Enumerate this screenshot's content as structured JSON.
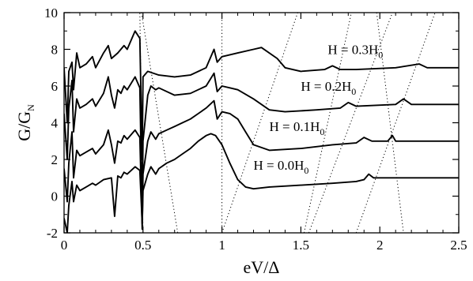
{
  "chart_data": {
    "type": "line",
    "xlabel": "eV/Δ",
    "ylabel": "G/G",
    "ylabel_sub": "N",
    "xlim": [
      0,
      2.5
    ],
    "ylim": [
      -2,
      10
    ],
    "xticks": [
      "0",
      "0.5",
      "1",
      "1.5",
      "2",
      "2.5"
    ],
    "xtick_values": [
      0,
      0.5,
      1,
      1.5,
      2,
      2.5
    ],
    "yticks": [
      "-2",
      "0",
      "2",
      "4",
      "6",
      "8",
      "10"
    ],
    "ytick_values": [
      -2,
      0,
      2,
      4,
      6,
      8,
      10
    ],
    "grid": false,
    "legend": "none",
    "line_color": "#000000",
    "series": [
      {
        "label_main": "H = 0.0H",
        "label_sub": "0",
        "label_at": [
          1.2,
          1.45
        ],
        "points": [
          [
            0.0,
            -1.2
          ],
          [
            0.02,
            -2.0
          ],
          [
            0.03,
            -0.5
          ],
          [
            0.05,
            0.8
          ],
          [
            0.06,
            -0.3
          ],
          [
            0.08,
            0.6
          ],
          [
            0.1,
            0.3
          ],
          [
            0.14,
            0.5
          ],
          [
            0.18,
            0.7
          ],
          [
            0.2,
            0.6
          ],
          [
            0.25,
            0.9
          ],
          [
            0.3,
            1.0
          ],
          [
            0.32,
            -1.1
          ],
          [
            0.34,
            1.1
          ],
          [
            0.36,
            1.0
          ],
          [
            0.38,
            1.3
          ],
          [
            0.4,
            1.2
          ],
          [
            0.45,
            1.6
          ],
          [
            0.48,
            1.4
          ],
          [
            0.495,
            -1.5
          ],
          [
            0.5,
            0.3
          ],
          [
            0.53,
            1.2
          ],
          [
            0.55,
            1.6
          ],
          [
            0.58,
            1.2
          ],
          [
            0.6,
            1.5
          ],
          [
            0.65,
            1.8
          ],
          [
            0.7,
            2.0
          ],
          [
            0.75,
            2.3
          ],
          [
            0.8,
            2.6
          ],
          [
            0.85,
            3.0
          ],
          [
            0.9,
            3.3
          ],
          [
            0.93,
            3.4
          ],
          [
            0.96,
            3.3
          ],
          [
            1.0,
            2.8
          ],
          [
            1.05,
            1.8
          ],
          [
            1.1,
            0.9
          ],
          [
            1.15,
            0.5
          ],
          [
            1.2,
            0.4
          ],
          [
            1.3,
            0.5
          ],
          [
            1.5,
            0.6
          ],
          [
            1.7,
            0.7
          ],
          [
            1.85,
            0.8
          ],
          [
            1.9,
            0.9
          ],
          [
            1.93,
            1.2
          ],
          [
            1.96,
            1.0
          ],
          [
            2.0,
            1.0
          ],
          [
            2.5,
            1.0
          ]
        ]
      },
      {
        "label_main": "H = 0.1H",
        "label_sub": "0",
        "label_at": [
          1.3,
          3.55
        ],
        "points": [
          [
            0.0,
            1.5
          ],
          [
            0.02,
            -0.3
          ],
          [
            0.03,
            1.8
          ],
          [
            0.05,
            3.5
          ],
          [
            0.06,
            1.0
          ],
          [
            0.08,
            2.5
          ],
          [
            0.1,
            2.2
          ],
          [
            0.14,
            2.4
          ],
          [
            0.18,
            2.6
          ],
          [
            0.2,
            2.3
          ],
          [
            0.25,
            2.8
          ],
          [
            0.28,
            3.6
          ],
          [
            0.3,
            2.8
          ],
          [
            0.32,
            1.8
          ],
          [
            0.34,
            3.0
          ],
          [
            0.36,
            2.9
          ],
          [
            0.38,
            3.3
          ],
          [
            0.4,
            3.1
          ],
          [
            0.45,
            3.6
          ],
          [
            0.48,
            3.2
          ],
          [
            0.495,
            -1.8
          ],
          [
            0.5,
            1.2
          ],
          [
            0.53,
            3.0
          ],
          [
            0.55,
            3.5
          ],
          [
            0.58,
            3.1
          ],
          [
            0.6,
            3.4
          ],
          [
            0.65,
            3.6
          ],
          [
            0.7,
            3.8
          ],
          [
            0.75,
            4.0
          ],
          [
            0.8,
            4.2
          ],
          [
            0.85,
            4.5
          ],
          [
            0.9,
            4.8
          ],
          [
            0.95,
            5.2
          ],
          [
            0.97,
            4.2
          ],
          [
            1.0,
            4.6
          ],
          [
            1.05,
            4.5
          ],
          [
            1.1,
            4.2
          ],
          [
            1.15,
            3.5
          ],
          [
            1.2,
            2.8
          ],
          [
            1.3,
            2.5
          ],
          [
            1.5,
            2.6
          ],
          [
            1.7,
            2.8
          ],
          [
            1.85,
            2.9
          ],
          [
            1.9,
            3.2
          ],
          [
            1.95,
            3.0
          ],
          [
            2.05,
            3.0
          ],
          [
            2.08,
            3.3
          ],
          [
            2.1,
            3.0
          ],
          [
            2.5,
            3.0
          ]
        ]
      },
      {
        "label_main": "H = 0.2H",
        "label_sub": "0",
        "label_at": [
          1.5,
          5.75
        ],
        "points": [
          [
            0.0,
            4.5
          ],
          [
            0.02,
            2.0
          ],
          [
            0.03,
            4.8
          ],
          [
            0.05,
            6.3
          ],
          [
            0.06,
            3.5
          ],
          [
            0.08,
            5.3
          ],
          [
            0.1,
            4.8
          ],
          [
            0.14,
            5.0
          ],
          [
            0.18,
            5.3
          ],
          [
            0.2,
            4.9
          ],
          [
            0.25,
            5.6
          ],
          [
            0.28,
            6.5
          ],
          [
            0.3,
            5.5
          ],
          [
            0.32,
            4.8
          ],
          [
            0.34,
            5.8
          ],
          [
            0.36,
            5.6
          ],
          [
            0.38,
            6.0
          ],
          [
            0.4,
            5.8
          ],
          [
            0.45,
            6.5
          ],
          [
            0.48,
            5.9
          ],
          [
            0.495,
            -1.2
          ],
          [
            0.5,
            3.0
          ],
          [
            0.53,
            5.5
          ],
          [
            0.55,
            6.0
          ],
          [
            0.58,
            5.8
          ],
          [
            0.6,
            5.9
          ],
          [
            0.7,
            5.5
          ],
          [
            0.8,
            5.6
          ],
          [
            0.9,
            6.0
          ],
          [
            0.95,
            6.7
          ],
          [
            0.97,
            5.7
          ],
          [
            1.0,
            6.0
          ],
          [
            1.05,
            5.9
          ],
          [
            1.1,
            5.8
          ],
          [
            1.2,
            5.3
          ],
          [
            1.3,
            4.7
          ],
          [
            1.4,
            4.6
          ],
          [
            1.6,
            4.7
          ],
          [
            1.75,
            4.8
          ],
          [
            1.8,
            5.1
          ],
          [
            1.85,
            4.9
          ],
          [
            2.1,
            5.0
          ],
          [
            2.15,
            5.3
          ],
          [
            2.2,
            5.0
          ],
          [
            2.5,
            5.0
          ]
        ]
      },
      {
        "label_main": "H = 0.3H",
        "label_sub": "0",
        "label_at": [
          1.67,
          7.75
        ],
        "points": [
          [
            0.0,
            7.0
          ],
          [
            0.02,
            4.0
          ],
          [
            0.03,
            6.8
          ],
          [
            0.05,
            7.3
          ],
          [
            0.06,
            5.8
          ],
          [
            0.08,
            7.8
          ],
          [
            0.1,
            7.0
          ],
          [
            0.14,
            7.2
          ],
          [
            0.18,
            7.6
          ],
          [
            0.2,
            7.0
          ],
          [
            0.25,
            7.8
          ],
          [
            0.28,
            8.2
          ],
          [
            0.3,
            7.5
          ],
          [
            0.34,
            7.8
          ],
          [
            0.38,
            8.2
          ],
          [
            0.4,
            8.0
          ],
          [
            0.45,
            9.0
          ],
          [
            0.48,
            8.6
          ],
          [
            0.495,
            2.0
          ],
          [
            0.5,
            6.5
          ],
          [
            0.53,
            6.8
          ],
          [
            0.6,
            6.6
          ],
          [
            0.7,
            6.5
          ],
          [
            0.8,
            6.6
          ],
          [
            0.9,
            7.0
          ],
          [
            0.95,
            8.0
          ],
          [
            0.97,
            7.3
          ],
          [
            1.0,
            7.6
          ],
          [
            1.1,
            7.8
          ],
          [
            1.2,
            8.0
          ],
          [
            1.25,
            8.1
          ],
          [
            1.35,
            7.5
          ],
          [
            1.4,
            7.0
          ],
          [
            1.5,
            6.8
          ],
          [
            1.65,
            6.9
          ],
          [
            1.7,
            7.1
          ],
          [
            1.75,
            6.9
          ],
          [
            1.85,
            6.9
          ],
          [
            2.1,
            7.0
          ],
          [
            2.25,
            7.2
          ],
          [
            2.3,
            7.0
          ],
          [
            2.5,
            7.0
          ]
        ]
      }
    ],
    "dotted_lines": [
      [
        [
          0.49,
          10
        ],
        [
          0.72,
          -2
        ]
      ],
      [
        [
          0.5,
          -2
        ],
        [
          0.48,
          10
        ]
      ],
      [
        [
          1.0,
          -2
        ],
        [
          1.0,
          10
        ]
      ],
      [
        [
          1.0,
          -2
        ],
        [
          1.48,
          10
        ]
      ],
      [
        [
          1.52,
          -2
        ],
        [
          1.82,
          10
        ]
      ],
      [
        [
          1.85,
          -2
        ],
        [
          2.35,
          10
        ]
      ],
      [
        [
          1.98,
          10
        ],
        [
          2.15,
          -2
        ]
      ],
      [
        [
          1.55,
          -2
        ],
        [
          2.08,
          10
        ]
      ]
    ]
  }
}
